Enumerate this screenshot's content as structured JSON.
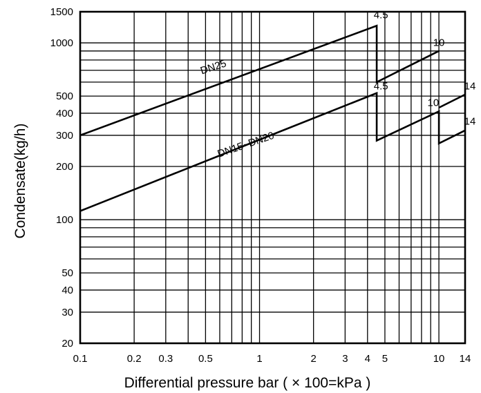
{
  "chart_data": {
    "type": "line",
    "xscale": "log",
    "yscale": "log",
    "xlim": [
      0.1,
      14
    ],
    "ylim": [
      20,
      1500
    ],
    "grid": true,
    "xlabel": "Differential pressure bar ( × 100=kPa )",
    "ylabel": "Condensate(kg/h)",
    "x_ticks": [
      {
        "value": 0.1,
        "label": "0.1"
      },
      {
        "value": 0.2,
        "label": "0.2"
      },
      {
        "value": 0.3,
        "label": "0.3"
      },
      {
        "value": 0.5,
        "label": "0.5"
      },
      {
        "value": 1,
        "label": "1"
      },
      {
        "value": 2,
        "label": "2"
      },
      {
        "value": 3,
        "label": "3"
      },
      {
        "value": 4,
        "label": "4"
      },
      {
        "value": 5,
        "label": "5"
      },
      {
        "value": 10,
        "label": "10"
      },
      {
        "value": 14,
        "label": "14"
      }
    ],
    "y_ticks": [
      {
        "value": 20,
        "label": "20"
      },
      {
        "value": 30,
        "label": "30"
      },
      {
        "value": 40,
        "label": "40"
      },
      {
        "value": 50,
        "label": "50"
      },
      {
        "value": 100,
        "label": "100"
      },
      {
        "value": 200,
        "label": "200"
      },
      {
        "value": 300,
        "label": "300"
      },
      {
        "value": 400,
        "label": "400"
      },
      {
        "value": 500,
        "label": "500"
      },
      {
        "value": 1000,
        "label": "1000"
      },
      {
        "value": 1500,
        "label": "1500"
      }
    ],
    "x_gridlines": [
      0.2,
      0.3,
      0.4,
      0.5,
      0.6,
      0.7,
      0.8,
      0.9,
      1,
      2,
      3,
      4,
      5,
      6,
      7,
      8,
      9,
      10
    ],
    "y_gridlines": [
      30,
      40,
      50,
      60,
      70,
      80,
      90,
      100,
      200,
      300,
      400,
      500,
      600,
      700,
      800,
      900,
      1000
    ],
    "series": [
      {
        "name": "DN25",
        "points": [
          [
            0.1,
            300
          ],
          [
            4.5,
            1250
          ],
          [
            4.5,
            600
          ],
          [
            10,
            900
          ]
        ]
      },
      {
        "name": "DN15~DN20",
        "points": [
          [
            0.1,
            112
          ],
          [
            4.5,
            520
          ],
          [
            4.5,
            280
          ],
          [
            10,
            410
          ],
          [
            10,
            270
          ],
          [
            14,
            320
          ]
        ]
      },
      {
        "name": "",
        "points": [
          [
            10,
            430
          ],
          [
            14,
            510
          ]
        ]
      }
    ],
    "annotations": [
      {
        "text": "DN25",
        "x": 0.56,
        "y": 700,
        "angle": -18
      },
      {
        "text": "DN15~DN20",
        "x": 0.85,
        "y": 255,
        "angle": -19
      },
      {
        "text": "4.5",
        "x": 4.75,
        "y": 1380
      },
      {
        "text": "10",
        "x": 10,
        "y": 960
      },
      {
        "text": "4.5",
        "x": 4.75,
        "y": 545
      },
      {
        "text": "10",
        "x": 9.3,
        "y": 440
      },
      {
        "text": "14",
        "x": 14.9,
        "y": 545
      },
      {
        "text": "14",
        "x": 14.9,
        "y": 345
      }
    ]
  }
}
